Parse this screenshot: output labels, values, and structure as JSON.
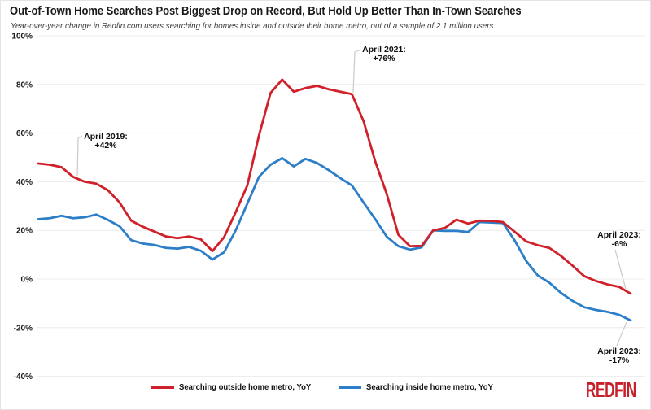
{
  "header": {
    "title": "Out-of-Town Home Searches Post Biggest Drop on Record, But Hold Up Better Than In-Town Searches",
    "subtitle": "Year-over-year change in Redfin.com users searching for homes inside and outside their home metro, out of a sample of 2.1 million users"
  },
  "branding": {
    "logo_text": "REDFIN",
    "logo_color": "#c6202a"
  },
  "colors": {
    "gridline": "#ececec",
    "leader_line": "#c9c9c9",
    "tick_text": "#1a1a1a"
  },
  "callouts": [
    {
      "line1": "April 2019:",
      "line2": "+42%",
      "series": "outside",
      "month": "2019-04",
      "value": 42
    },
    {
      "line1": "April 2021:",
      "line2": "+76%",
      "series": "outside",
      "month": "2021-04",
      "value": 76
    },
    {
      "line1": "April 2023:",
      "line2": "-6%",
      "series": "outside",
      "month": "2023-04",
      "value": -6
    },
    {
      "line1": "April 2023:",
      "line2": "-17%",
      "series": "inside",
      "month": "2023-04",
      "value": -17
    }
  ],
  "chart_data": {
    "type": "line",
    "title": "Out-of-Town Home Searches Post Biggest Drop on Record, But Hold Up Better Than In-Town Searches",
    "unit": "%",
    "grid": "horizontal",
    "legend_position": "bottom-center",
    "ylim": [
      -40,
      100
    ],
    "y_ticks": [
      100,
      80,
      60,
      40,
      20,
      0,
      -20,
      -40
    ],
    "y_tick_labels": [
      "100%",
      "80%",
      "60%",
      "40%",
      "20%",
      "0%",
      "-20%",
      "-40%"
    ],
    "x": [
      "2019-01",
      "2019-02",
      "2019-03",
      "2019-04",
      "2019-05",
      "2019-06",
      "2019-07",
      "2019-08",
      "2019-09",
      "2019-10",
      "2019-11",
      "2019-12",
      "2020-01",
      "2020-02",
      "2020-03",
      "2020-04",
      "2020-05",
      "2020-06",
      "2020-07",
      "2020-08",
      "2020-09",
      "2020-10",
      "2020-11",
      "2020-12",
      "2021-01",
      "2021-02",
      "2021-03",
      "2021-04",
      "2021-05",
      "2021-06",
      "2021-07",
      "2021-08",
      "2021-09",
      "2021-10",
      "2021-11",
      "2021-12",
      "2022-01",
      "2022-02",
      "2022-03",
      "2022-04",
      "2022-05",
      "2022-06",
      "2022-07",
      "2022-08",
      "2022-09",
      "2022-10",
      "2022-11",
      "2022-12",
      "2023-01",
      "2023-02",
      "2023-03",
      "2023-04"
    ],
    "series": [
      {
        "key": "outside",
        "name": "Searching outside home metro, YoY",
        "color": "#d0202a",
        "values": [
          47.5,
          47,
          46,
          42,
          40,
          39.2,
          36.5,
          31.5,
          24,
          21.5,
          19.5,
          17.5,
          16.8,
          17.5,
          16.3,
          11.5,
          17.2,
          27.5,
          38.5,
          59,
          76.5,
          82,
          77,
          78.5,
          79.4,
          78,
          77,
          76,
          65,
          48.5,
          35,
          18.2,
          13.5,
          13.6,
          20,
          21,
          24.4,
          22.8,
          24,
          23.9,
          23.4,
          19.5,
          15.5,
          13.9,
          12.8,
          9.5,
          5.5,
          1.2,
          -0.8,
          -2.2,
          -3.2,
          -6
        ]
      },
      {
        "key": "inside",
        "name": "Searching inside home metro, YoY",
        "color": "#2b7ec7",
        "values": [
          24.6,
          25,
          26,
          25,
          25.4,
          26.5,
          24.3,
          21.7,
          16,
          14.6,
          14,
          12.8,
          12.5,
          13.2,
          11.6,
          8,
          11,
          20,
          31,
          42,
          47,
          49.7,
          46.3,
          49.4,
          47.7,
          44.8,
          41.5,
          38.5,
          31.5,
          24.7,
          17.4,
          13.5,
          12.1,
          13,
          20,
          19.8,
          19.8,
          19.3,
          23.4,
          23.2,
          23,
          16,
          7.5,
          1.5,
          -1.5,
          -5.7,
          -9,
          -11.6,
          -12.7,
          -13.5,
          -14.7,
          -17
        ]
      }
    ]
  }
}
